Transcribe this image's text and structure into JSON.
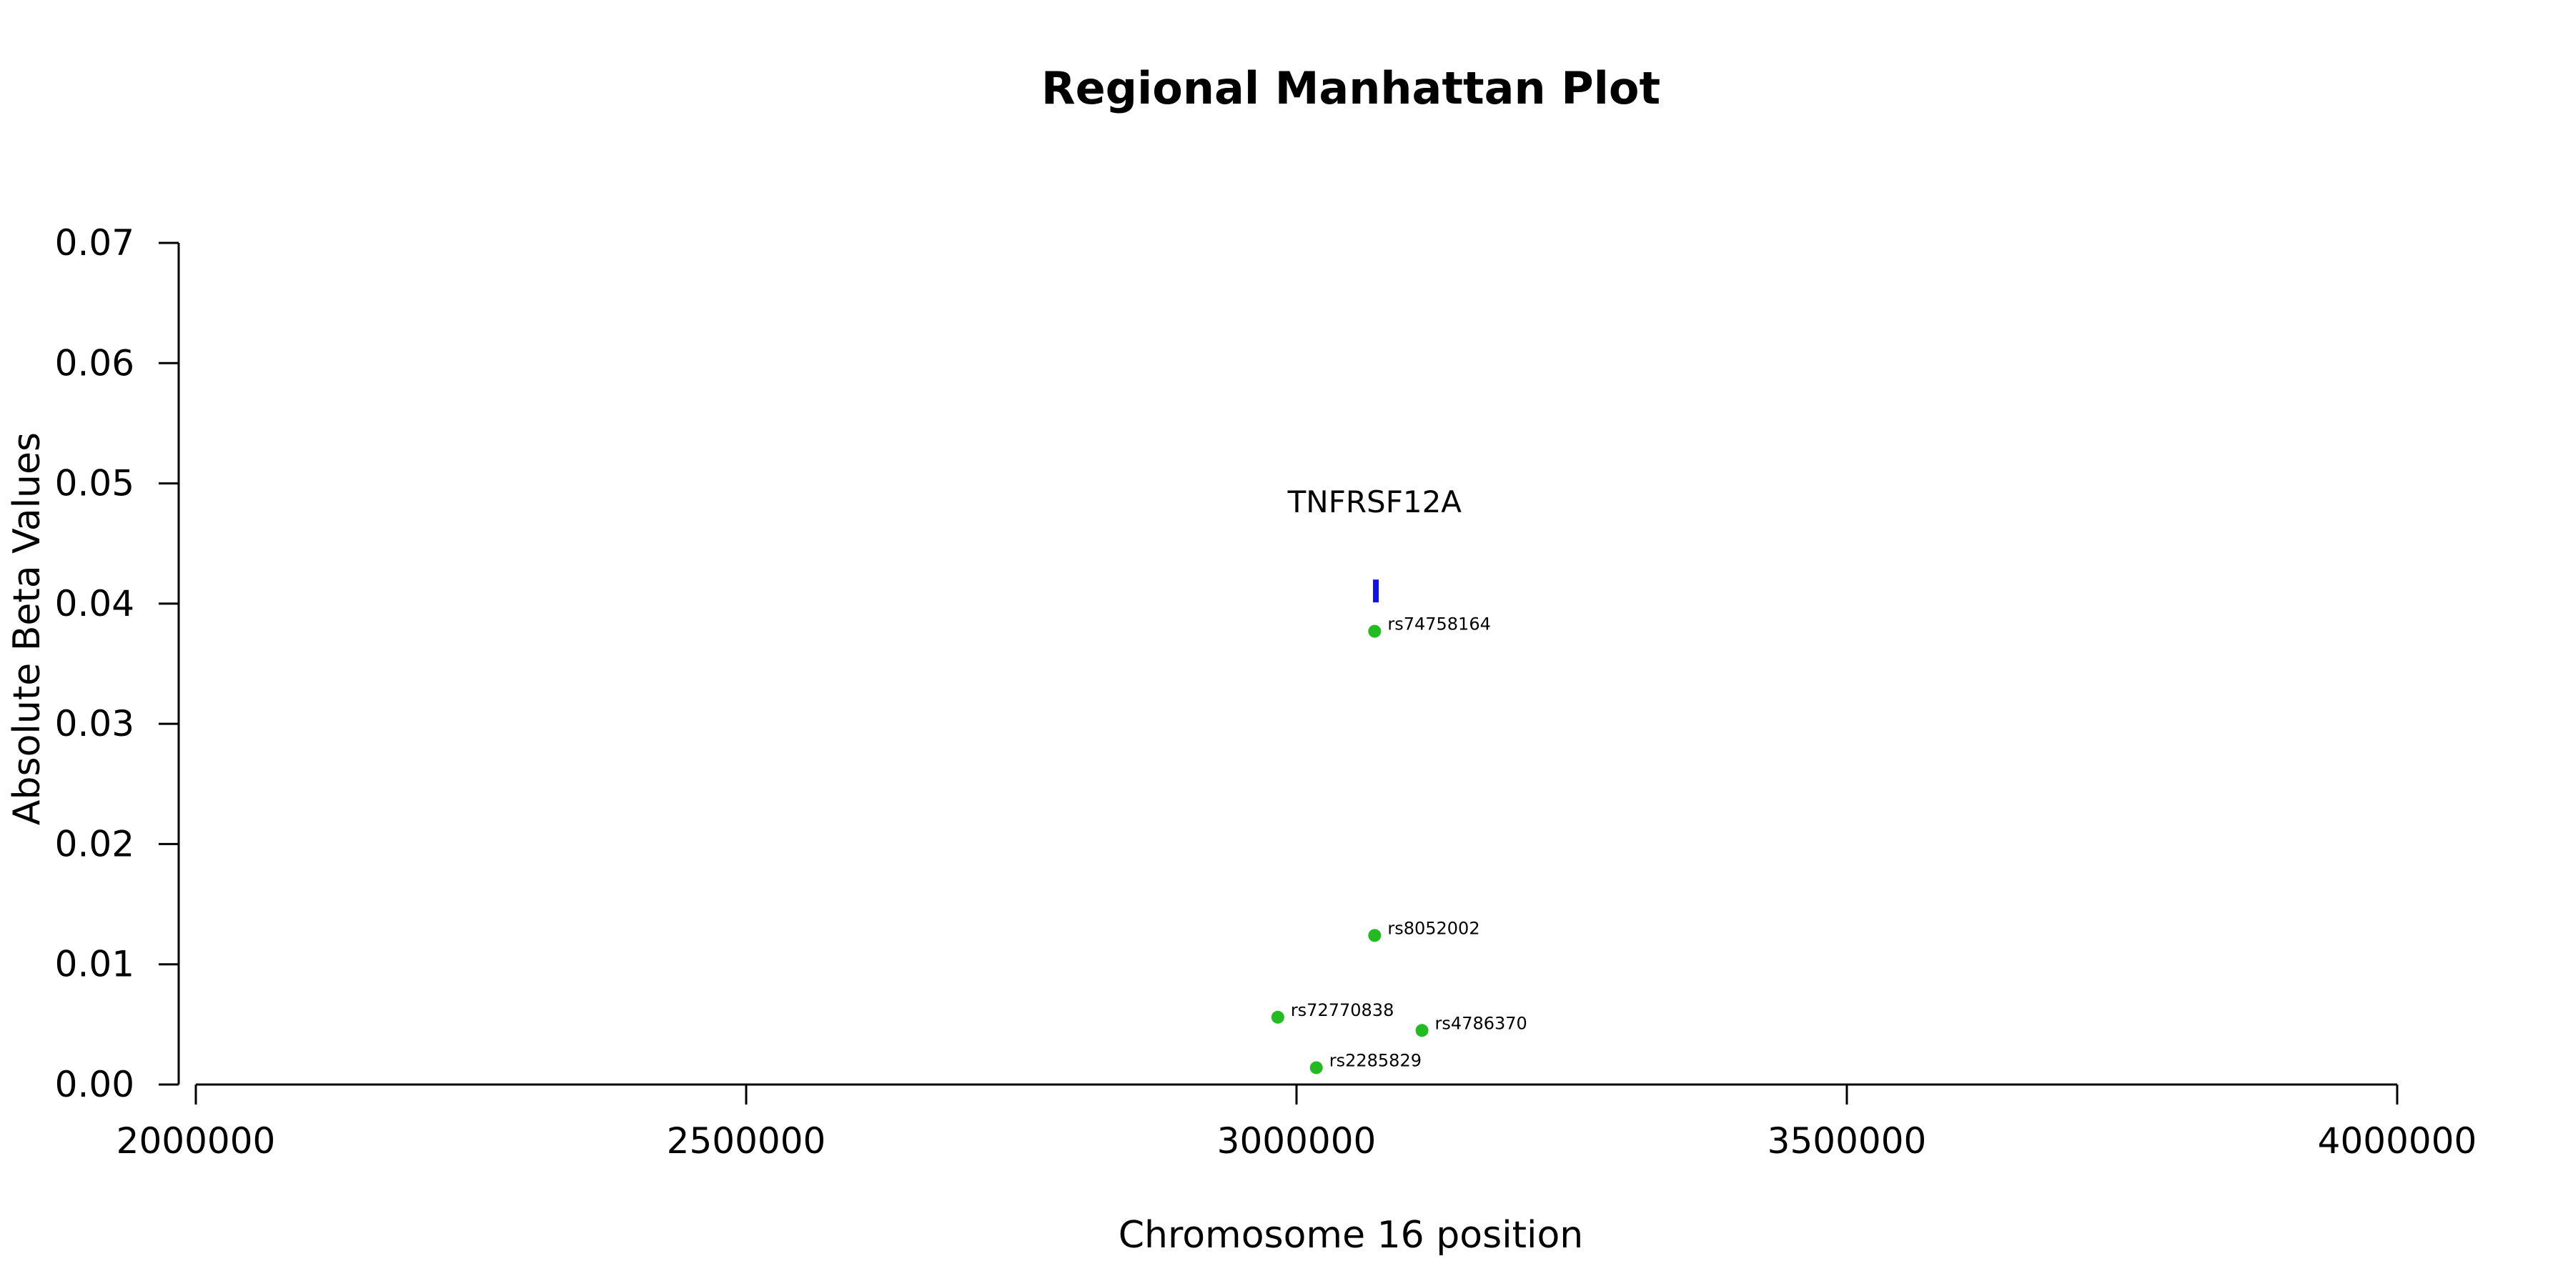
{
  "chart_data": {
    "type": "scatter",
    "title": "Regional Manhattan Plot",
    "xlabel": "Chromosome 16 position",
    "ylabel": "Absolute Beta Values",
    "xlim": [
      2000000,
      4000000
    ],
    "ylim": [
      0,
      0.07
    ],
    "xticks": [
      2000000,
      2500000,
      3000000,
      3500000,
      4000000
    ],
    "xtick_labels": [
      "2000000",
      "2500000",
      "3000000",
      "3500000",
      "4000000"
    ],
    "yticks": [
      0,
      0.01,
      0.02,
      0.03,
      0.04,
      0.05,
      0.06,
      0.07
    ],
    "ytick_labels": [
      "0.00",
      "0.01",
      "0.02",
      "0.03",
      "0.04",
      "0.05",
      "0.06",
      "0.07"
    ],
    "grid": false,
    "point_color": "#22bb22",
    "gene_color": "#1111ee",
    "points": [
      {
        "label": "rs74758164",
        "x": 3071000,
        "y": 0.0377
      },
      {
        "label": "rs8052002",
        "x": 3071000,
        "y": 0.0124
      },
      {
        "label": "rs72770838",
        "x": 2983000,
        "y": 0.0056
      },
      {
        "label": "rs4786370",
        "x": 3114000,
        "y": 0.0045
      },
      {
        "label": "rs2285829",
        "x": 3018000,
        "y": 0.0014
      }
    ],
    "genes": [
      {
        "name": "TNFRSF12A",
        "x_start": 3069500,
        "x_end": 3072500,
        "y_low": 0.0401,
        "y_high": 0.042,
        "label_y": 0.0485
      }
    ]
  }
}
